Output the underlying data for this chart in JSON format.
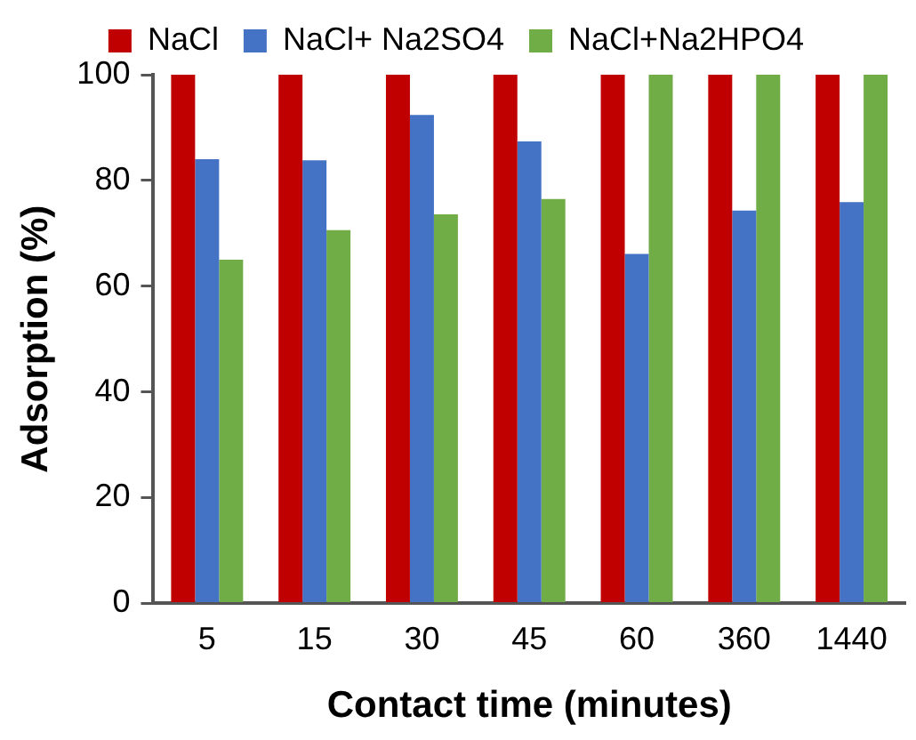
{
  "chart_data": {
    "type": "bar",
    "xlabel": "Contact time (minutes)",
    "ylabel": "Adsorption (%)",
    "categories": [
      "5",
      "15",
      "30",
      "45",
      "60",
      "360",
      "1440"
    ],
    "series": [
      {
        "name": "NaCl",
        "color": "#c00000",
        "values": [
          100,
          100,
          100,
          100,
          100,
          100,
          100
        ]
      },
      {
        "name": "NaCl+ Na2SO4",
        "color": "#4472c4",
        "values": [
          84,
          83.8,
          92.4,
          87.4,
          66.1,
          74.3,
          75.9
        ]
      },
      {
        "name": "NaCl+Na2HPO4",
        "color": "#70ad47",
        "values": [
          65,
          70.6,
          73.6,
          76.5,
          100,
          100,
          100
        ]
      }
    ],
    "ylim": [
      0,
      100
    ],
    "yticks": [
      0,
      20,
      40,
      60,
      80,
      100
    ],
    "grid": false,
    "legend": "top"
  }
}
